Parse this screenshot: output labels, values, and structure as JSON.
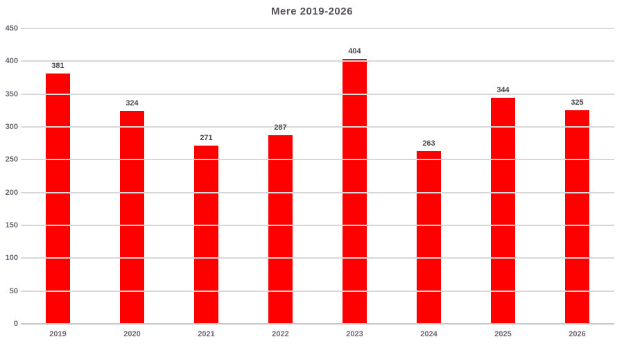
{
  "page": {
    "background": "#FFFFFF"
  },
  "chart_data": {
    "type": "bar",
    "title": "Mere 2019-2026",
    "categories": [
      "2019",
      "2020",
      "2021",
      "2022",
      "2023",
      "2024",
      "2025",
      "2026"
    ],
    "values": [
      381,
      324,
      271,
      287,
      404,
      263,
      344,
      325
    ],
    "xlabel": "",
    "ylabel": "",
    "ylim": [
      0,
      450
    ],
    "ytick_step": 50,
    "ytick_labels": [
      "0",
      "50",
      "100",
      "150",
      "200",
      "250",
      "300",
      "350",
      "400",
      "450"
    ],
    "grid": true,
    "legend": false,
    "colors": {
      "bar": "#FF0000",
      "grid": "#D8D8D8",
      "axis_line": "#C6C6C6",
      "title": "#57505A",
      "value_label": "#4A4A4A",
      "tick_label": "#6E6472"
    }
  }
}
